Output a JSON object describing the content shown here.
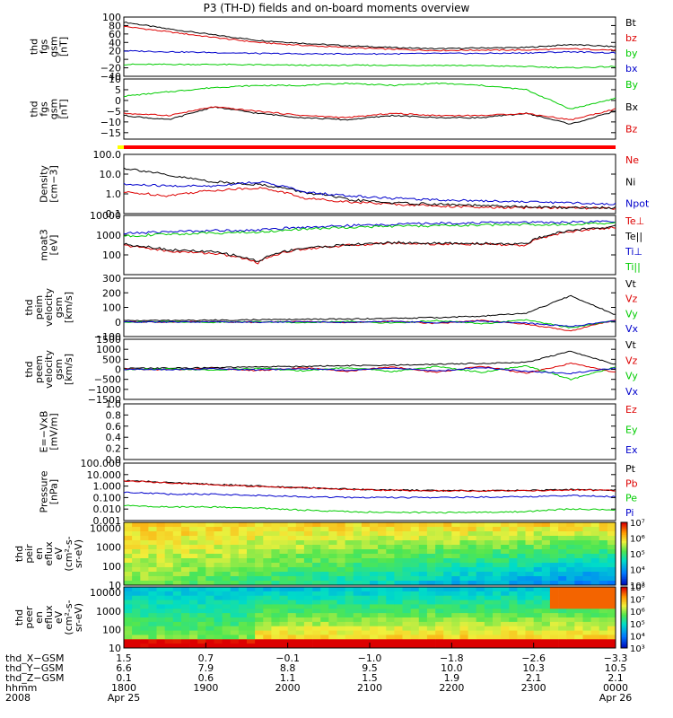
{
  "title": "P3 (TH-D) fields and on-board moments overview",
  "chart_data": [
    {
      "type": "line",
      "ylabel": [
        "thd",
        "fgs",
        "gsm",
        "[nT]"
      ],
      "ylim": [
        -40,
        100
      ],
      "yticks": [
        "100",
        "80",
        "60",
        "40",
        "20",
        "0",
        "−20",
        "−40"
      ],
      "yvals": [
        100,
        80,
        60,
        40,
        20,
        0,
        -20,
        -40
      ],
      "series": [
        {
          "name": "Bt",
          "color": "#000000",
          "values": [
            88,
            72,
            58,
            45,
            38,
            32,
            28,
            25,
            27,
            28,
            35,
            30
          ]
        },
        {
          "name": "bz",
          "color": "#dd0000",
          "values": [
            78,
            65,
            52,
            40,
            33,
            28,
            24,
            21,
            22,
            22,
            25,
            22
          ]
        },
        {
          "name": "by",
          "color": "#00cc00",
          "values": [
            -12,
            -12,
            -12,
            -13,
            -14,
            -14,
            -14,
            -14,
            -15,
            -17,
            -20,
            -17
          ]
        },
        {
          "name": "bx",
          "color": "#0000cc",
          "values": [
            20,
            18,
            16,
            14,
            13,
            13,
            13,
            14,
            14,
            15,
            18,
            15
          ]
        }
      ]
    },
    {
      "type": "line",
      "ylabel": [
        "thd",
        "fgs",
        "gsm",
        "[nT]"
      ],
      "ylim": [
        -18,
        10
      ],
      "yticks": [
        "10",
        "5",
        "0",
        "−5",
        "−10",
        "−15"
      ],
      "yvals": [
        10,
        5,
        0,
        -5,
        -10,
        -15
      ],
      "series": [
        {
          "name": "By",
          "color": "#00cc00",
          "values": [
            2,
            4,
            6,
            7,
            7,
            8,
            7,
            8,
            7,
            5,
            -4,
            1
          ]
        },
        {
          "name": "Bx",
          "color": "#000000",
          "values": [
            -7,
            -9,
            -3,
            -6,
            -8,
            -9,
            -7,
            -8,
            -8,
            -6,
            -11,
            -5
          ]
        },
        {
          "name": "Bz",
          "color": "#dd0000",
          "values": [
            -6,
            -7,
            -3,
            -5,
            -7,
            -8,
            -6,
            -7,
            -7,
            -6,
            -9,
            -4
          ]
        }
      ]
    },
    {
      "type": "line",
      "ylabel": [
        "Density",
        "[cm−3]"
      ],
      "scale": "log",
      "ylim": [
        0.1,
        100
      ],
      "yticks": [
        "100.0",
        "10.0",
        "1.0",
        "0.1"
      ],
      "yvals": [
        100,
        10,
        1,
        0.1
      ],
      "series": [
        {
          "name": "Ne",
          "color": "#dd0000",
          "values": [
            1.2,
            0.8,
            1.5,
            2.0,
            0.6,
            0.4,
            0.3,
            0.25,
            0.2,
            0.2,
            0.2,
            0.18
          ]
        },
        {
          "name": "Ni",
          "color": "#000000",
          "values": [
            20,
            8,
            4,
            3,
            1.2,
            0.5,
            0.35,
            0.3,
            0.25,
            0.22,
            0.2,
            0.2
          ]
        },
        {
          "name": "Npot",
          "color": "#0000cc",
          "values": [
            3,
            2.5,
            2.5,
            4,
            1.2,
            0.8,
            0.6,
            0.5,
            0.45,
            0.4,
            0.35,
            0.3
          ]
        }
      ]
    },
    {
      "type": "line",
      "ylabel": [
        "moat3",
        "[eV]"
      ],
      "scale": "log",
      "ylim": [
        10,
        10000
      ],
      "yticks": [
        "10000",
        "1000",
        "100"
      ],
      "yvals": [
        10000,
        1000,
        100
      ],
      "series": [
        {
          "name": "Te⊥",
          "color": "#dd0000",
          "values": [
            300,
            150,
            120,
            40,
            200,
            300,
            400,
            350,
            350,
            300,
            1500,
            2500
          ]
        },
        {
          "name": "Te||",
          "color": "#000000",
          "values": [
            350,
            180,
            140,
            45,
            220,
            320,
            420,
            380,
            380,
            350,
            1700,
            2800
          ]
        },
        {
          "name": "Ti⊥",
          "color": "#0000cc",
          "values": [
            1200,
            1500,
            1700,
            1800,
            2500,
            3000,
            3500,
            4000,
            4200,
            4500,
            4500,
            5000
          ]
        },
        {
          "name": "Ti||",
          "color": "#00cc00",
          "values": [
            900,
            1100,
            1300,
            1400,
            2000,
            2500,
            2800,
            3000,
            3200,
            3500,
            3500,
            4000
          ]
        }
      ]
    },
    {
      "type": "line",
      "ylabel": [
        "thd",
        "peim",
        "velocity",
        "gsm",
        "[km/s]"
      ],
      "ylim": [
        -100,
        300
      ],
      "yticks": [
        "300",
        "200",
        "100",
        "0",
        "−100"
      ],
      "yvals": [
        300,
        200,
        100,
        0,
        -100
      ],
      "series": [
        {
          "name": "Vt",
          "color": "#000000",
          "values": [
            10,
            10,
            12,
            15,
            18,
            20,
            25,
            30,
            40,
            60,
            180,
            50
          ]
        },
        {
          "name": "Vz",
          "color": "#dd0000",
          "values": [
            0,
            0,
            2,
            -3,
            4,
            -5,
            6,
            -10,
            10,
            -15,
            -60,
            15
          ]
        },
        {
          "name": "Vy",
          "color": "#00cc00",
          "values": [
            0,
            2,
            -2,
            3,
            -4,
            5,
            -8,
            10,
            -12,
            15,
            -40,
            10
          ]
        },
        {
          "name": "Vx",
          "color": "#0000cc",
          "values": [
            0,
            -1,
            1,
            -2,
            2,
            -3,
            4,
            -5,
            6,
            -8,
            -30,
            8
          ]
        }
      ]
    },
    {
      "type": "line",
      "ylabel": [
        "thd",
        "peem",
        "velocity",
        "gsm",
        "[km/s]"
      ],
      "ylim": [
        -1500,
        1500
      ],
      "yticks": [
        "1500",
        "1000",
        "500",
        "0",
        "−500",
        "−1000",
        "−1500"
      ],
      "yvals": [
        1500,
        1000,
        500,
        0,
        -500,
        -1000,
        -1500
      ],
      "series": [
        {
          "name": "Vt",
          "color": "#000000",
          "values": [
            50,
            60,
            80,
            120,
            150,
            180,
            200,
            250,
            300,
            350,
            900,
            250
          ]
        },
        {
          "name": "Vz",
          "color": "#dd0000",
          "values": [
            10,
            -20,
            40,
            -60,
            80,
            -100,
            120,
            -150,
            160,
            -200,
            300,
            -150
          ]
        },
        {
          "name": "Vy",
          "color": "#00cc00",
          "values": [
            0,
            20,
            -30,
            50,
            -70,
            90,
            -110,
            140,
            -150,
            180,
            -500,
            120
          ]
        },
        {
          "name": "Vx",
          "color": "#0000cc",
          "values": [
            0,
            -10,
            20,
            -30,
            40,
            -50,
            60,
            -80,
            90,
            -100,
            -200,
            60
          ]
        }
      ]
    },
    {
      "type": "line",
      "ylabel": [
        "E=−VxB",
        "[mV/m]"
      ],
      "ylim": [
        0,
        1
      ],
      "yticks": [
        "1.0",
        "0.8",
        "0.6",
        "0.4",
        "0.2",
        "0.0"
      ],
      "yvals": [
        1,
        0.8,
        0.6,
        0.4,
        0.2,
        0
      ],
      "series": [
        {
          "name": "Ez",
          "color": "#dd0000",
          "values": []
        },
        {
          "name": "Ey",
          "color": "#00cc00",
          "values": []
        },
        {
          "name": "Ex",
          "color": "#0000cc",
          "values": []
        }
      ]
    },
    {
      "type": "line",
      "ylabel": [
        "Pressure",
        "[nPa]"
      ],
      "scale": "log",
      "ylim": [
        0.001,
        100
      ],
      "yticks": [
        "100.000",
        "10.000",
        "1.000",
        "0.100",
        "0.010",
        "0.001"
      ],
      "yvals": [
        100,
        10,
        1,
        0.1,
        0.01,
        0.001
      ],
      "series": [
        {
          "name": "Pt",
          "color": "#000000",
          "values": [
            3.0,
            2.0,
            1.4,
            1.0,
            0.75,
            0.55,
            0.45,
            0.4,
            0.4,
            0.42,
            0.5,
            0.45
          ]
        },
        {
          "name": "Pb",
          "color": "#dd0000",
          "values": [
            2.8,
            1.9,
            1.3,
            0.9,
            0.7,
            0.5,
            0.42,
            0.38,
            0.38,
            0.4,
            0.45,
            0.42
          ]
        },
        {
          "name": "Pe",
          "color": "#00cc00",
          "values": [
            0.02,
            0.015,
            0.015,
            0.012,
            0.008,
            0.006,
            0.005,
            0.005,
            0.005,
            0.006,
            0.01,
            0.008
          ]
        },
        {
          "name": "Pi",
          "color": "#0000cc",
          "values": [
            0.3,
            0.2,
            0.2,
            0.15,
            0.12,
            0.1,
            0.1,
            0.1,
            0.11,
            0.12,
            0.15,
            0.12
          ]
        }
      ]
    },
    {
      "type": "heatmap",
      "ylabel": [
        "thd",
        "peir",
        "en",
        "eflux",
        "eV",
        "(cm²-s-",
        "sr-eV)"
      ],
      "scale": "log",
      "ylim": [
        10,
        20000
      ],
      "yticks": [
        "10000",
        "1000",
        "100",
        "10"
      ],
      "yvals": [
        10000,
        1000,
        100,
        10
      ],
      "colorbar": {
        "labels": [
          "10⁷",
          "10⁶",
          "10⁵",
          "10⁴",
          "10³"
        ],
        "exps": [
          7,
          6,
          5,
          4,
          3
        ],
        "range": [
          3,
          7
        ]
      }
    },
    {
      "type": "heatmap",
      "ylabel": [
        "thd",
        "peer",
        "en",
        "eflux",
        "eV",
        "(cm²-s-",
        "sr-eV)"
      ],
      "scale": "log",
      "ylim": [
        10,
        20000
      ],
      "yticks": [
        "10000",
        "1000",
        "100",
        "10"
      ],
      "yvals": [
        10000,
        1000,
        100,
        10
      ],
      "colorbar": {
        "labels": [
          "10⁸",
          "10⁷",
          "10⁶",
          "10⁵",
          "10⁴",
          "10³"
        ],
        "exps": [
          8,
          7,
          6,
          5,
          4,
          3
        ],
        "range": [
          3,
          8
        ]
      }
    }
  ],
  "xaxis": {
    "row_labels": [
      "thd_X−GSM",
      "thd_Y−GSM",
      "thd_Z−GSM",
      "hhmm",
      "2008"
    ],
    "ticks": [
      {
        "x": "1.5",
        "y": "6.6",
        "z": "0.1",
        "hhmm": "1800",
        "date": "Apr 25"
      },
      {
        "x": "0.7",
        "y": "7.9",
        "z": "0.6",
        "hhmm": "1900",
        "date": ""
      },
      {
        "x": "−0.1",
        "y": "8.8",
        "z": "1.1",
        "hhmm": "2000",
        "date": ""
      },
      {
        "x": "−1.0",
        "y": "9.5",
        "z": "1.5",
        "hhmm": "2100",
        "date": ""
      },
      {
        "x": "−1.8",
        "y": "10.0",
        "z": "1.9",
        "hhmm": "2200",
        "date": ""
      },
      {
        "x": "−2.6",
        "y": "10.3",
        "z": "2.1",
        "hhmm": "2300",
        "date": ""
      },
      {
        "x": "−3.3",
        "y": "10.5",
        "z": "2.1",
        "hhmm": "0000",
        "date": "Apr 26"
      }
    ]
  }
}
